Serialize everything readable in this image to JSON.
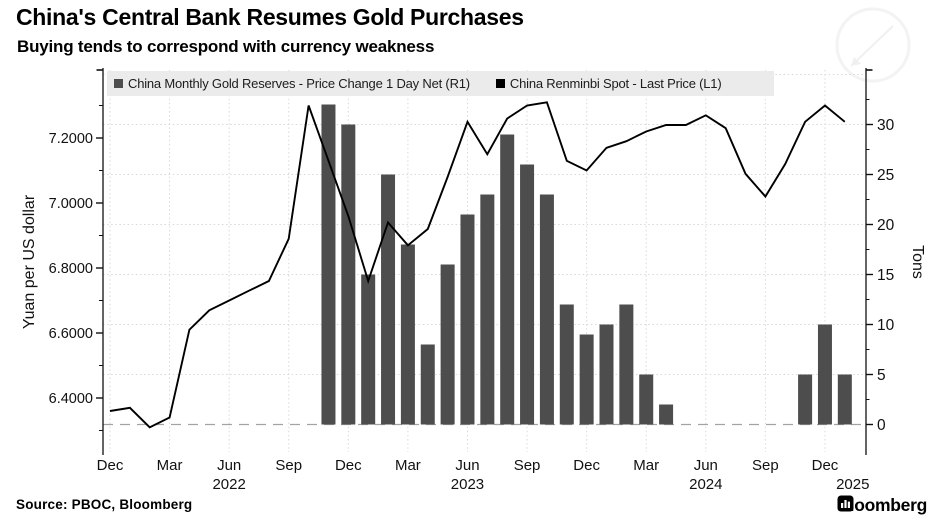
{
  "header": {
    "title": "China's Central Bank Resumes Gold Purchases",
    "subtitle": "Buying tends to correspond with currency weakness"
  },
  "legend": [
    {
      "label": "China Monthly Gold Reserves - Price Change 1 Day Net (R1)",
      "color": "#4d4d4d",
      "marker": "square"
    },
    {
      "label": "China Renminbi Spot - Last Price (L1)",
      "color": "#000000",
      "marker": "square"
    }
  ],
  "footer": {
    "source": "Source: PBOC, Bloomberg",
    "brand": "Bloomberg",
    "brand_icon": "bloomberg-bars-icon"
  },
  "left_axis": {
    "title": "Yuan per US dollar",
    "major_ticks": [
      {
        "value": 7.2,
        "label": "7.2000"
      },
      {
        "value": 7.0,
        "label": "7.0000"
      },
      {
        "value": 6.8,
        "label": "6.8000"
      },
      {
        "value": 6.6,
        "label": "6.6000"
      },
      {
        "value": 6.4,
        "label": "6.4000"
      }
    ],
    "minor_ticks": [
      7.3,
      7.1,
      6.9,
      6.7,
      6.5,
      6.3
    ],
    "ylim": [
      6.23,
      7.41
    ]
  },
  "right_axis": {
    "title": "Tons",
    "major_ticks": [
      {
        "value": 30,
        "label": "30"
      },
      {
        "value": 25,
        "label": "25"
      },
      {
        "value": 20,
        "label": "20"
      },
      {
        "value": 15,
        "label": "15"
      },
      {
        "value": 10,
        "label": "10"
      },
      {
        "value": 5,
        "label": "5"
      },
      {
        "value": 0,
        "label": "0"
      }
    ],
    "minor_ticks": [
      2.5,
      7.5,
      12.5,
      17.5,
      22.5,
      27.5,
      32.5
    ],
    "unlabeled_gridline_top": 35,
    "ylim": [
      -3.1,
      35.6
    ]
  },
  "x_axis": {
    "quarter_ticks": [
      {
        "month_index": 0,
        "label": "Dec"
      },
      {
        "month_index": 3,
        "label": "Mar"
      },
      {
        "month_index": 6,
        "label": "Jun"
      },
      {
        "month_index": 9,
        "label": "Sep"
      },
      {
        "month_index": 12,
        "label": "Dec"
      },
      {
        "month_index": 15,
        "label": "Mar"
      },
      {
        "month_index": 18,
        "label": "Jun"
      },
      {
        "month_index": 21,
        "label": "Sep"
      },
      {
        "month_index": 24,
        "label": "Dec"
      },
      {
        "month_index": 27,
        "label": "Mar"
      },
      {
        "month_index": 30,
        "label": "Jun"
      },
      {
        "month_index": 33,
        "label": "Sep"
      },
      {
        "month_index": 36,
        "label": "Dec"
      }
    ],
    "year_labels": [
      {
        "month_index": 6,
        "label": "2022"
      },
      {
        "month_index": 18,
        "label": "2023"
      },
      {
        "month_index": 30,
        "label": "2024"
      },
      {
        "month_index": 37.4,
        "label": "2025"
      }
    ]
  },
  "chart_data": {
    "type": "combo",
    "subtype": [
      "bar",
      "line"
    ],
    "grid": true,
    "legend_position": "top",
    "zero_dashed_line": true,
    "bar_color": "#4d4d4d",
    "line_color": "#000000",
    "months": [
      "Dec 2021",
      "Jan 2022",
      "Feb 2022",
      "Mar 2022",
      "Apr 2022",
      "May 2022",
      "Jun 2022",
      "Jul 2022",
      "Aug 2022",
      "Sep 2022",
      "Oct 2022",
      "Nov 2022",
      "Dec 2022",
      "Jan 2023",
      "Feb 2023",
      "Mar 2023",
      "Apr 2023",
      "May 2023",
      "Jun 2023",
      "Jul 2023",
      "Aug 2023",
      "Sep 2023",
      "Oct 2023",
      "Nov 2023",
      "Dec 2023",
      "Jan 2024",
      "Feb 2024",
      "Mar 2024",
      "Apr 2024",
      "May 2024",
      "Jun 2024",
      "Jul 2024",
      "Aug 2024",
      "Sep 2024",
      "Oct 2024",
      "Nov 2024",
      "Dec 2024",
      "Jan 2025"
    ],
    "series": [
      {
        "name": "China Monthly Gold Reserves - Price Change 1 Day Net (R1)",
        "type": "bar",
        "axis": "right",
        "unit": "tons",
        "values": [
          null,
          null,
          null,
          null,
          null,
          null,
          null,
          null,
          null,
          null,
          null,
          32,
          30,
          15,
          25,
          18,
          8,
          16,
          21,
          23,
          29,
          26,
          23,
          12,
          9,
          10,
          12,
          5,
          2,
          0,
          0,
          0,
          0,
          0,
          0,
          5,
          10,
          5
        ]
      },
      {
        "name": "China Renminbi Spot - Last Price (L1)",
        "type": "line",
        "axis": "left",
        "unit": "yuan per US dollar",
        "values": [
          6.36,
          6.37,
          6.31,
          6.34,
          6.61,
          6.67,
          6.7,
          6.73,
          6.76,
          6.89,
          7.3,
          7.13,
          6.96,
          6.76,
          6.94,
          6.87,
          6.92,
          7.08,
          7.25,
          7.15,
          7.26,
          7.3,
          7.31,
          7.13,
          7.1,
          7.17,
          7.19,
          7.22,
          7.24,
          7.24,
          7.27,
          7.23,
          7.09,
          7.02,
          7.12,
          7.25,
          7.3,
          7.25
        ]
      }
    ]
  }
}
